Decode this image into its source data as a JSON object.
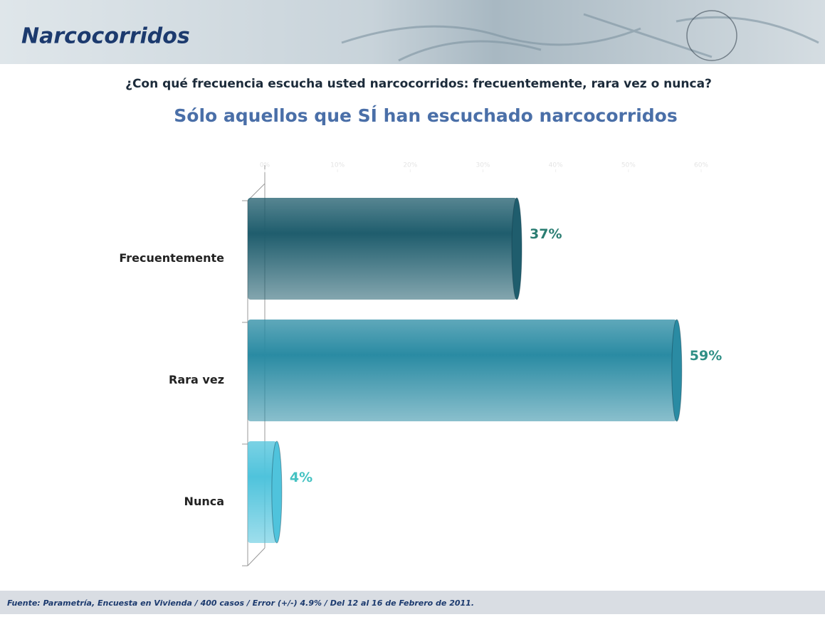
{
  "header": {
    "title": "Narcocorridos"
  },
  "chart_data": {
    "type": "bar",
    "orientation": "horizontal",
    "subtitle": "¿Con qué frecuencia escucha usted narcocorridos: frecuentemente, rara vez o nunca?",
    "title": "Sólo aquellos que SÍ han escuchado narcocorridos",
    "categories": [
      "Frecuentemente",
      "Rara vez",
      "Nunca"
    ],
    "values": [
      37,
      59,
      4
    ],
    "value_labels": [
      "37%",
      "59%",
      "4%"
    ],
    "colors": [
      "#1f5d6d",
      "#2a8ba3",
      "#4fc3dc"
    ],
    "label_colors": [
      "#2a7d72",
      "#2f8f86",
      "#45c2c2"
    ],
    "xlim": [
      0,
      60
    ],
    "xticks": [
      {
        "value": 0,
        "label": "0%"
      },
      {
        "value": 10,
        "label": "10%"
      },
      {
        "value": 20,
        "label": "20%"
      },
      {
        "value": 30,
        "label": "30%"
      },
      {
        "value": 40,
        "label": "40%"
      },
      {
        "value": 50,
        "label": "50%"
      },
      {
        "value": 60,
        "label": "60%"
      }
    ]
  },
  "footer": {
    "source": "Fuente: Parametría, Encuesta en Vivienda / 400 casos / Error (+/-) 4.9% / Del 12 al 16 de Febrero de 2011."
  }
}
